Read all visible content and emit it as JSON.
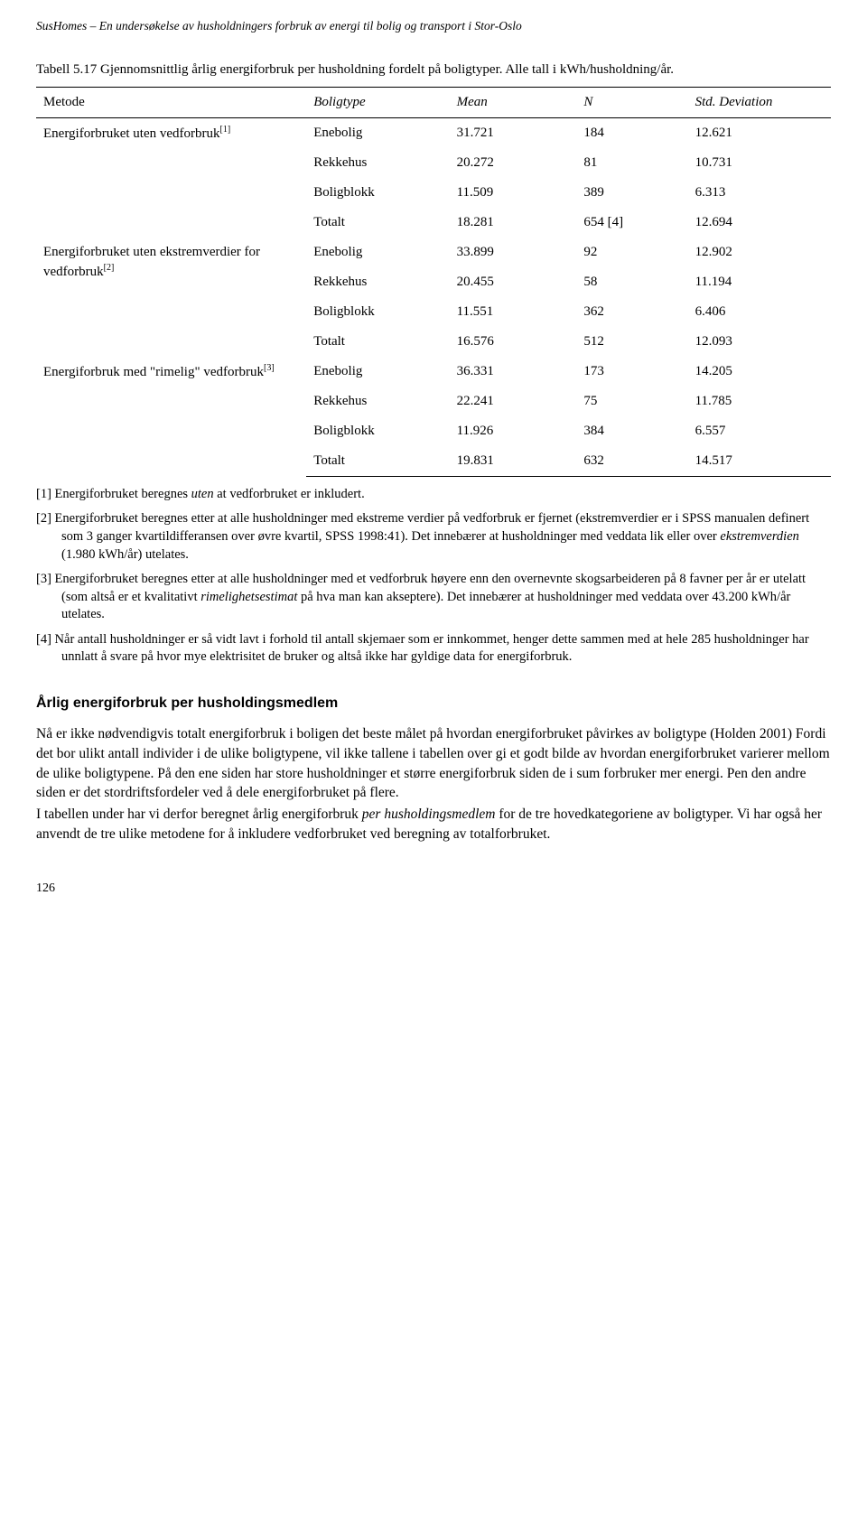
{
  "running_head": "SusHomes – En undersøkelse av husholdningers forbruk av energi til bolig og transport i Stor-Oslo",
  "table_caption": "Tabell 5.17 Gjennomsnittlig årlig energiforbruk per husholdning fordelt på boligtyper. Alle tall i kWh/husholdning/år.",
  "table": {
    "columns": [
      "Metode",
      "Boligtype",
      "Mean",
      "N",
      "Std. Deviation"
    ],
    "groups": [
      {
        "metode": "Energiforbruket uten vedforbruk",
        "sup": "[1]",
        "rows": [
          [
            "Enebolig",
            "31.721",
            "184",
            "12.621"
          ],
          [
            "Rekkehus",
            "20.272",
            "81",
            "10.731"
          ],
          [
            "Boligblokk",
            "11.509",
            "389",
            "6.313"
          ],
          [
            "Totalt",
            "18.281",
            "654 [4]",
            "12.694"
          ]
        ]
      },
      {
        "metode": "Energiforbruket uten ekstremverdier for vedforbruk",
        "sup": "[2]",
        "rows": [
          [
            "Enebolig",
            "33.899",
            "92",
            "12.902"
          ],
          [
            "Rekkehus",
            "20.455",
            "58",
            "11.194"
          ],
          [
            "Boligblokk",
            "11.551",
            "362",
            "6.406"
          ],
          [
            "Totalt",
            "16.576",
            "512",
            "12.093"
          ]
        ]
      },
      {
        "metode": "Energiforbruk med \"rimelig\" vedforbruk",
        "sup": "[3]",
        "rows": [
          [
            "Enebolig",
            "36.331",
            "173",
            "14.205"
          ],
          [
            "Rekkehus",
            "22.241",
            "75",
            "11.785"
          ],
          [
            "Boligblokk",
            "11.926",
            "384",
            "6.557"
          ],
          [
            "Totalt",
            "19.831",
            "632",
            "14.517"
          ]
        ]
      }
    ]
  },
  "footnotes": [
    "[1]  Energiforbruket beregnes uten at vedforbruket er inkludert.",
    "[2]  Energiforbruket beregnes etter at alle husholdninger med ekstreme verdier på vedforbruk er fjernet (ekstremverdier er i SPSS manualen definert som 3 ganger kvartildifferansen over øvre kvartil, SPSS 1998:41). Det innebærer at husholdninger med veddata lik eller over ekstremverdien (1.980 kWh/år) utelates.",
    "[3]  Energiforbruket beregnes etter at alle husholdninger med et vedforbruk høyere enn den overnevnte skogsarbeideren på 8 favner per år er utelatt (som altså er et kvalitativt rimelighetsestimat på hva man kan akseptere). Det innebærer at husholdninger med veddata over 43.200 kWh/år utelates.",
    "[4]  Når antall husholdninger er så vidt lavt i forhold til antall skjemaer som er innkommet, henger dette sammen med at hele 285 husholdninger har unnlatt å svare på hvor mye elektrisitet de bruker og altså ikke har gyldige data for energiforbruk."
  ],
  "section_heading": "Årlig energiforbruk per husholdingsmedlem",
  "body_paragraphs": [
    "Nå er ikke nødvendigvis totalt energiforbruk i boligen det beste målet på hvordan energiforbruket påvirkes av boligtype (Holden 2001) Fordi det bor ulikt antall individer i de ulike boligtypene, vil ikke tallene i tabellen over gi et godt bilde av hvordan energiforbruket varierer mellom de ulike boligtypene. På den ene siden har store husholdninger et større energiforbruk siden de i sum forbruker mer energi. Pen den andre siden er det stordriftsfordeler ved å dele energiforbruket på flere.",
    "I tabellen under har vi derfor beregnet årlig energiforbruk per husholdingsmedlem for de tre hovedkategoriene av boligtyper. Vi har også her anvendt de tre ulike metodene for å inkludere vedforbruket ved beregning av totalforbruket."
  ],
  "page_number": "126"
}
